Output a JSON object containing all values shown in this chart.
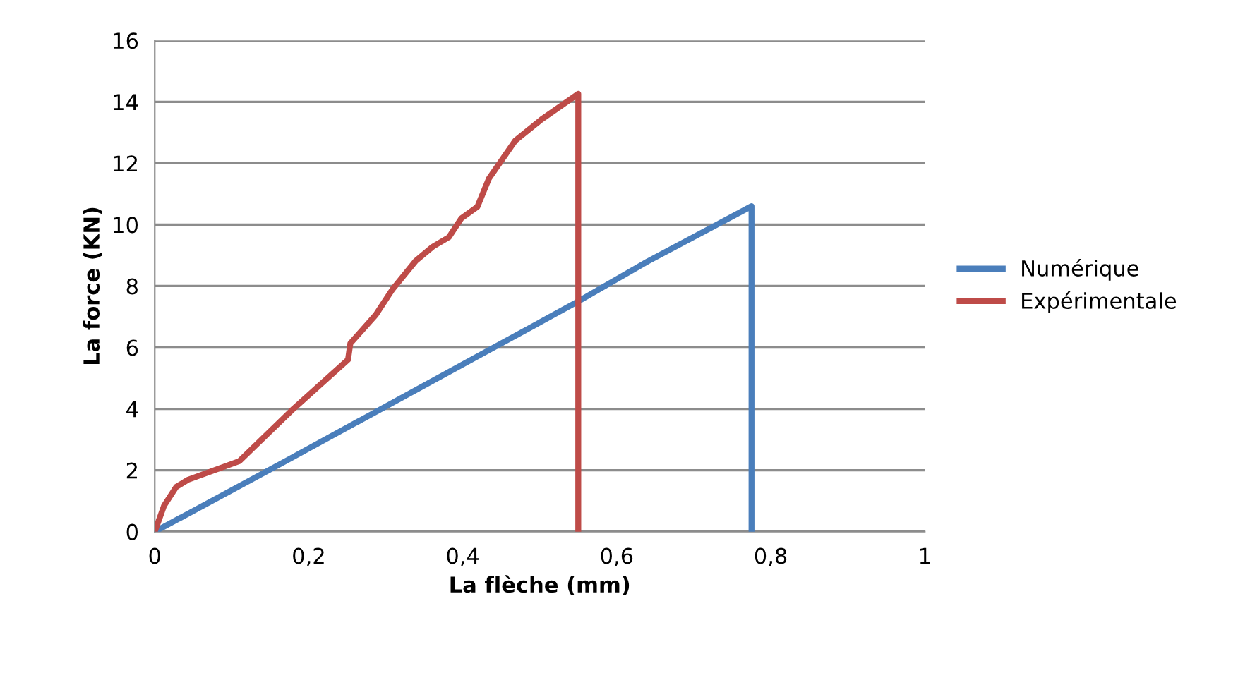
{
  "chart_data": {
    "type": "line",
    "xlabel": "La flèche (mm)",
    "ylabel": "La force (KN)",
    "xlim": [
      0,
      1
    ],
    "xticks": [
      0,
      {
        "value": 0.2,
        "label": "0,2"
      },
      {
        "value": 0.4,
        "label": "0,4"
      },
      {
        "value": 0.6,
        "label": "0,6"
      },
      {
        "value": 0.8,
        "label": "0,8"
      },
      1
    ],
    "ylim": [
      0,
      16
    ],
    "yticks": [
      0,
      2,
      4,
      6,
      8,
      10,
      12,
      14,
      16
    ],
    "grid": "y",
    "legend": "right",
    "marker": "none",
    "line_style": "solid",
    "series": [
      {
        "name": "Numérique",
        "color": "#4a7ebb",
        "x": [
          0,
          0.17,
          0.55,
          0.64,
          0.775,
          0.775
        ],
        "values": [
          0,
          2.3,
          7.5,
          8.8,
          10.6,
          0
        ]
      },
      {
        "name": "Expérimentale",
        "color": "#be4b48",
        "x": [
          0,
          0.012,
          0.028,
          0.043,
          0.11,
          0.18,
          0.251,
          0.254,
          0.287,
          0.309,
          0.339,
          0.361,
          0.382,
          0.398,
          0.419,
          0.434,
          0.468,
          0.502,
          0.55,
          0.55
        ],
        "values": [
          0,
          0.84,
          1.46,
          1.69,
          2.3,
          4.0,
          5.6,
          6.13,
          7.06,
          7.9,
          8.82,
          9.28,
          9.59,
          10.2,
          10.58,
          11.5,
          12.73,
          13.42,
          14.26,
          0
        ]
      }
    ]
  }
}
